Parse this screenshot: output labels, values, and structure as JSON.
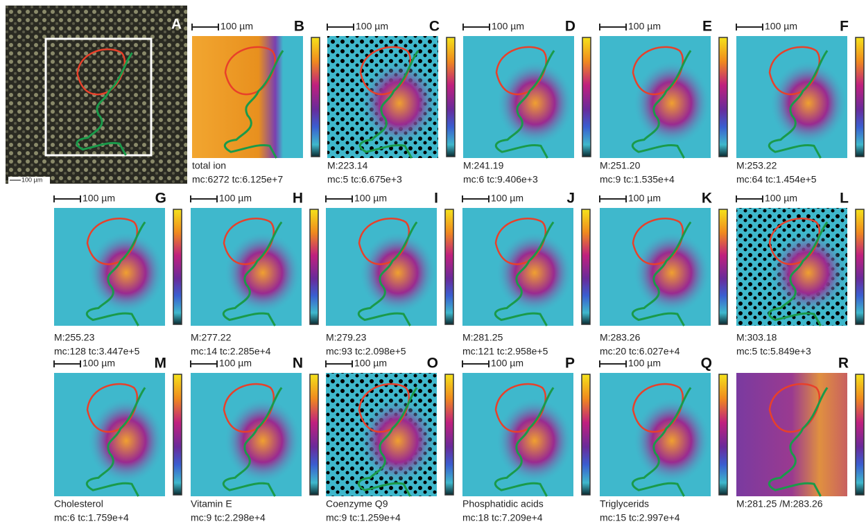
{
  "panels": [
    {
      "letter": "A",
      "scale": "100 µm"
    },
    {
      "letter": "B",
      "scale": "100 µm",
      "caption": [
        "total ion",
        "mc:6272 tc:6.125e+7"
      ]
    },
    {
      "letter": "C",
      "scale": "100 µm",
      "caption": [
        "M:223.14",
        "mc:5 tc:6.675e+3"
      ]
    },
    {
      "letter": "D",
      "scale": "100 µm",
      "caption": [
        "M:241.19",
        "mc:6 tc:9.406e+3"
      ]
    },
    {
      "letter": "E",
      "scale": "100 µm",
      "caption": [
        "M:251.20",
        "mc:9 tc:1.535e+4"
      ]
    },
    {
      "letter": "F",
      "scale": "100 µm",
      "caption": [
        "M:253.22",
        "mc:64 tc:1.454e+5"
      ]
    },
    {
      "letter": "G",
      "scale": "100 µm",
      "caption": [
        "M:255.23",
        "mc:128 tc:3.447e+5"
      ]
    },
    {
      "letter": "H",
      "scale": "100 µm",
      "caption": [
        "M:277.22",
        "mc:14 tc:2.285e+4"
      ]
    },
    {
      "letter": "I",
      "scale": "100 µm",
      "caption": [
        "M:279.23",
        "mc:93 tc:2.098e+5"
      ]
    },
    {
      "letter": "J",
      "scale": "100 µm",
      "caption": [
        "M:281.25",
        "mc:121 tc:2.958e+5"
      ]
    },
    {
      "letter": "K",
      "scale": "100 µm",
      "caption": [
        "M:283.26",
        "mc:20 tc:6.027e+4"
      ]
    },
    {
      "letter": "L",
      "scale": "100 µm",
      "caption": [
        "M:303.18",
        "mc:5 tc:5.849e+3"
      ]
    },
    {
      "letter": "M",
      "scale": "100 µm",
      "caption": [
        "Cholesterol",
        "mc:6 tc:1.759e+4"
      ]
    },
    {
      "letter": "N",
      "scale": "100 µm",
      "caption": [
        "Vitamin E",
        "mc:9 tc:2.298e+4"
      ]
    },
    {
      "letter": "O",
      "scale": "100 µm",
      "caption": [
        "Coenzyme Q9",
        "mc:9 tc:1.259e+4"
      ]
    },
    {
      "letter": "P",
      "scale": "100 µm",
      "caption": [
        "Phosphatidic acids",
        "mc:18 tc:7.209e+4"
      ]
    },
    {
      "letter": "Q",
      "scale": "100 µm",
      "caption": [
        "Triglycerids",
        "mc:15 tc:2.997e+4"
      ]
    },
    {
      "letter": "R",
      "caption": [
        "M:281.25 /M:283.26"
      ]
    }
  ]
}
